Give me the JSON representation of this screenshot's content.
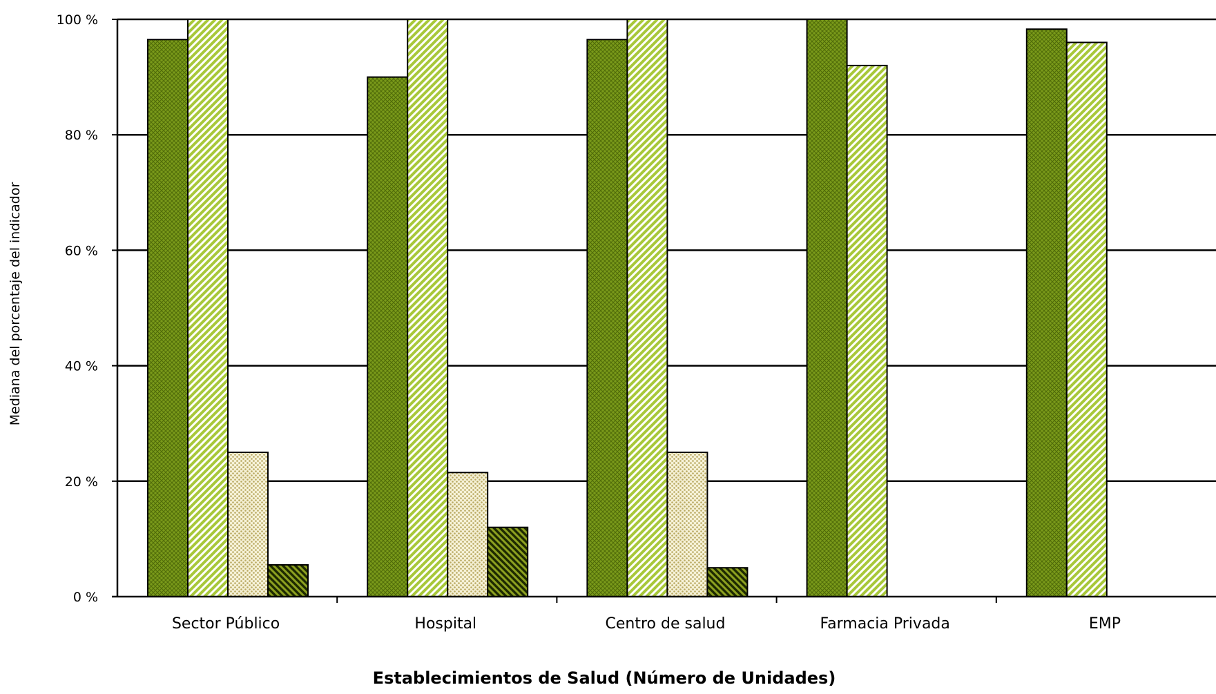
{
  "chart_data": {
    "type": "bar",
    "xlabel": "Establecimientos de Salud (Número de Unidades)",
    "ylabel": "Mediana del porcentaje del indicador",
    "ylim": [
      0,
      100
    ],
    "y_ticks": [
      "0 %",
      "20 %",
      "40 %",
      "60 %",
      "80 %",
      "100 %"
    ],
    "y_tick_values": [
      0,
      20,
      40,
      60,
      80,
      100
    ],
    "grid": true,
    "legend": "none",
    "categories": [
      "Sector Público",
      "Hospital",
      "Centro de salud",
      "Farmacia Privada",
      "EMP"
    ],
    "series": [
      {
        "values": [
          96.5,
          90,
          96.5,
          100,
          98.3
        ],
        "color": "#7a9a1a",
        "pattern": "crosshatch"
      },
      {
        "values": [
          100,
          100,
          100,
          92,
          96
        ],
        "color": "#c8dc7a",
        "pattern": "diagonal"
      },
      {
        "values": [
          25,
          21.5,
          25,
          null,
          null
        ],
        "color": "#e8e0b0",
        "pattern": "dots"
      },
      {
        "values": [
          5.5,
          12,
          5,
          null,
          null
        ],
        "color": "#3a4a08",
        "pattern": "dark-diagonal"
      }
    ]
  }
}
